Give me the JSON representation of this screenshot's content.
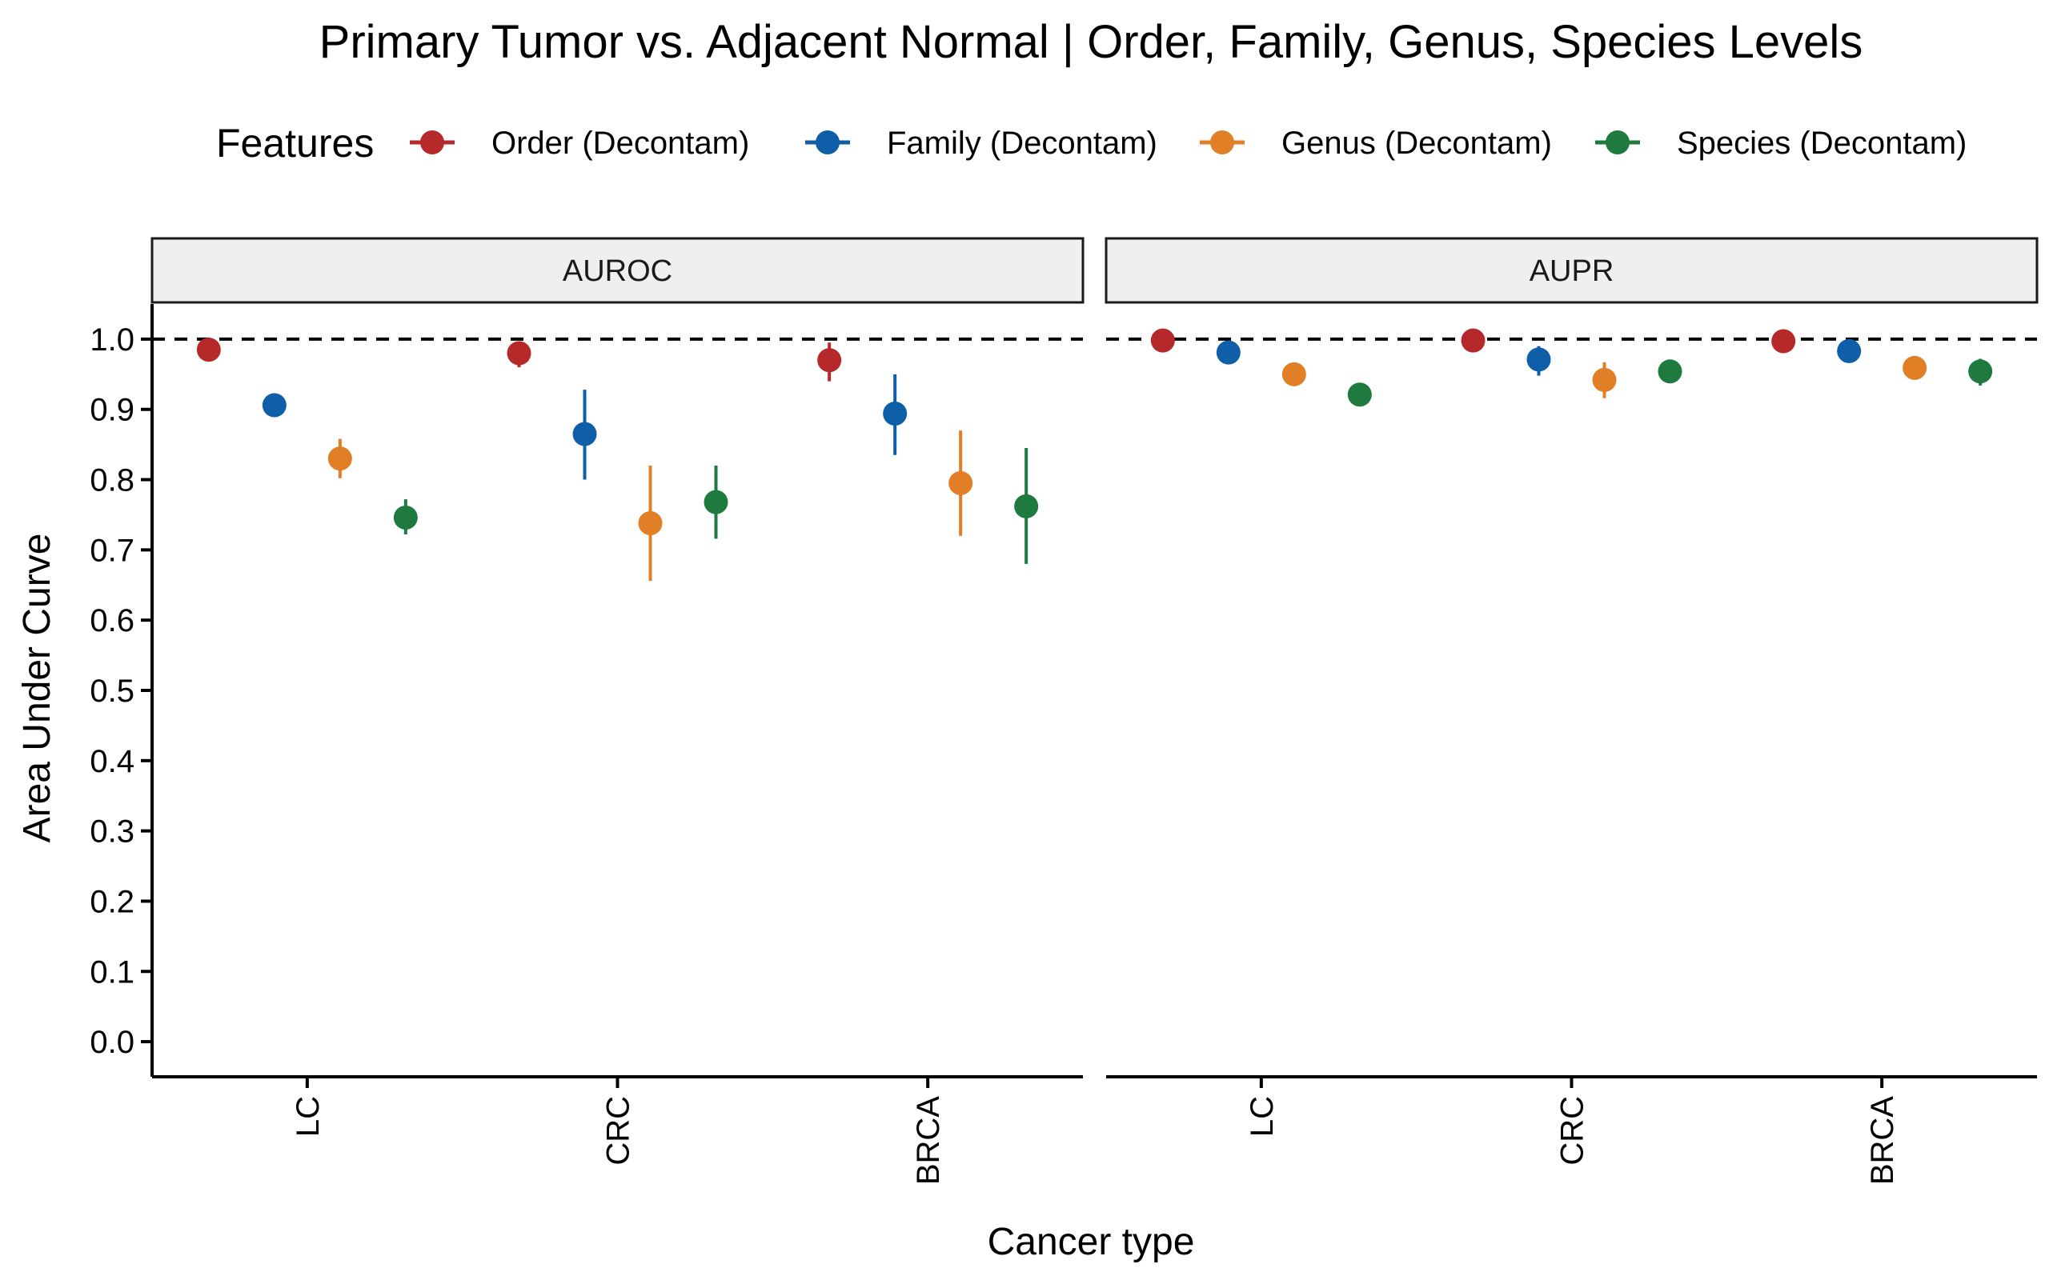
{
  "chart_data": {
    "type": "scatter",
    "title": "Primary Tumor vs. Adjacent Normal | Order, Family, Genus, Species Levels",
    "xlabel": "Cancer type",
    "ylabel": "Area Under Curve",
    "ylim": [
      -0.05,
      1.05
    ],
    "yticks": [
      0.0,
      0.1,
      0.2,
      0.3,
      0.4,
      0.5,
      0.6,
      0.7,
      0.8,
      0.9,
      1.0
    ],
    "ytick_labels": [
      "0.0",
      "0.1",
      "0.2",
      "0.3",
      "0.4",
      "0.5",
      "0.6",
      "0.7",
      "0.8",
      "0.9",
      "1.0"
    ],
    "reference_line": 1.0,
    "grid": false,
    "legend": {
      "title": "Features",
      "position": "top"
    },
    "categories": [
      "LC",
      "CRC",
      "BRCA"
    ],
    "panels": [
      {
        "label": "AUROC",
        "series": [
          {
            "name": "Order (Decontam)",
            "color": "#B5292A",
            "values": [
              0.985,
              0.98,
              0.97
            ],
            "lower": [
              0.975,
              0.96,
              0.94
            ],
            "upper": [
              0.995,
              0.995,
              0.995
            ]
          },
          {
            "name": "Family (Decontam)",
            "color": "#0F5FA8",
            "values": [
              0.906,
              0.865,
              0.894
            ],
            "lower": [
              0.895,
              0.8,
              0.835
            ],
            "upper": [
              0.915,
              0.928,
              0.95
            ]
          },
          {
            "name": "Genus (Decontam)",
            "color": "#E07F25",
            "values": [
              0.83,
              0.738,
              0.795
            ],
            "lower": [
              0.802,
              0.656,
              0.72
            ],
            "upper": [
              0.858,
              0.82,
              0.87
            ]
          },
          {
            "name": "Species (Decontam)",
            "color": "#1F7A40",
            "values": [
              0.746,
              0.768,
              0.762
            ],
            "lower": [
              0.722,
              0.716,
              0.68
            ],
            "upper": [
              0.772,
              0.82,
              0.845
            ]
          }
        ]
      },
      {
        "label": "AUPR",
        "series": [
          {
            "name": "Order (Decontam)",
            "color": "#B5292A",
            "values": [
              0.998,
              0.998,
              0.997
            ],
            "lower": [
              0.995,
              0.995,
              0.994
            ],
            "upper": [
              1.0,
              1.0,
              1.0
            ]
          },
          {
            "name": "Family (Decontam)",
            "color": "#0F5FA8",
            "values": [
              0.981,
              0.971,
              0.983
            ],
            "lower": [
              0.975,
              0.948,
              0.976
            ],
            "upper": [
              0.987,
              0.99,
              0.99
            ]
          },
          {
            "name": "Genus (Decontam)",
            "color": "#E07F25",
            "values": [
              0.95,
              0.942,
              0.959
            ],
            "lower": [
              0.942,
              0.916,
              0.952
            ],
            "upper": [
              0.958,
              0.967,
              0.966
            ]
          },
          {
            "name": "Species (Decontam)",
            "color": "#1F7A40",
            "values": [
              0.921,
              0.954,
              0.954
            ],
            "lower": [
              0.914,
              0.948,
              0.934
            ],
            "upper": [
              0.928,
              0.96,
              0.972
            ]
          }
        ]
      }
    ]
  }
}
